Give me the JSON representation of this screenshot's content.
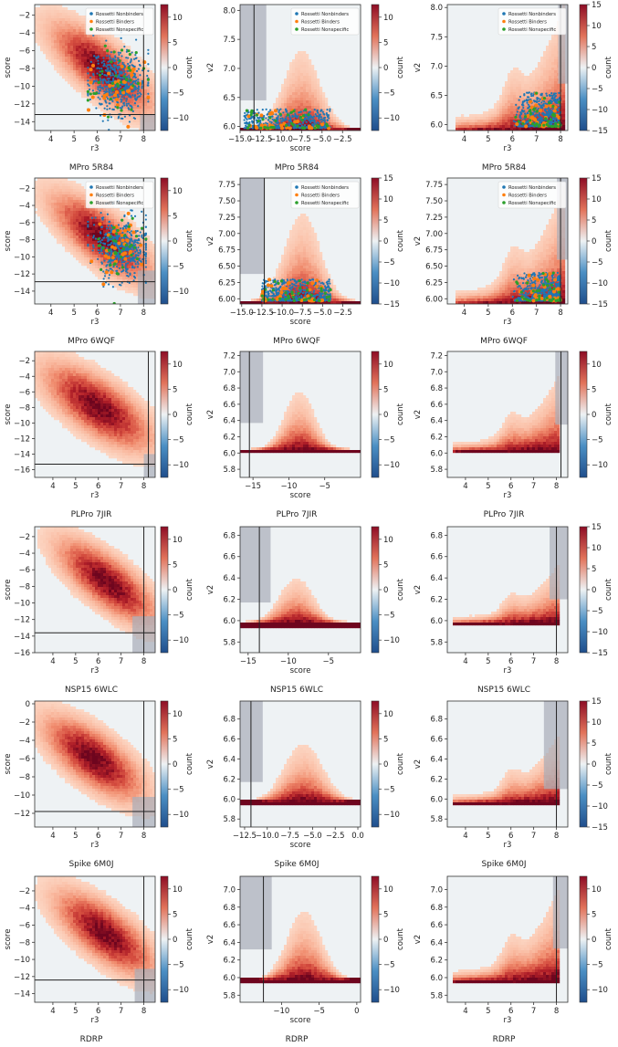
{
  "colorbar": {
    "label": "count"
  },
  "legend": [
    "Rossetti Nonbinders",
    "Rossetti Binders",
    "Rossetti Nonspecific"
  ],
  "colors": {
    "nonbinder": "#1f77b4",
    "binder": "#ff7f0e",
    "nonspecific": "#2ca02c",
    "background": "#eef2f4",
    "shade": "#a8adb8"
  },
  "rows": [
    {
      "title": "MPro 5R84",
      "panels": [
        {
          "type": "heatmap",
          "xlabel": "r3",
          "ylabel": "score",
          "xlim": [
            3.3,
            8.5
          ],
          "ylim": [
            -15,
            -0.8
          ],
          "xticks": [
            4,
            5,
            6,
            7,
            8
          ],
          "yticks": [
            -14,
            -12,
            -10,
            -8,
            -6,
            -4,
            -2
          ],
          "cbar": [
            -10,
            -5,
            0,
            5,
            10
          ],
          "legend": true,
          "vline": 8.0,
          "hline": -13.2,
          "shade": [
            [
              7.85,
              8.5,
              -15,
              -13.2
            ]
          ],
          "dist": {
            "kind": "diag",
            "cx": 6.2,
            "cy": -8,
            "sx": 1.2,
            "sy": 2.8,
            "rho": -0.75
          },
          "scatter": {
            "cx": 6.9,
            "cy": -9.5,
            "sx": 0.6,
            "sy": 1.8,
            "xmin": 5.6,
            "xmax": 8.2
          }
        },
        {
          "type": "heatmap",
          "xlabel": "score",
          "ylabel": "v2",
          "xlim": [
            -15,
            -0.3
          ],
          "ylim": [
            5.93,
            8.1
          ],
          "xticks": [
            -15,
            -12.5,
            -10,
            -7.5,
            -5,
            -2.5
          ],
          "yticks": [
            6.0,
            6.5,
            7.0,
            7.5,
            8.0
          ],
          "cbar": [
            -10,
            -5,
            0,
            5,
            10
          ],
          "legend": true,
          "vline": -13.3,
          "shade": [
            [
              -15,
              -11.8,
              6.45,
              8.1
            ]
          ],
          "dist": {
            "kind": "mound",
            "cx": -7.5,
            "sx": 3.2,
            "base": 5.97,
            "peak": 7.3,
            "pw": 1.6
          },
          "scatter": {
            "kind": "band",
            "xmin": -14.5,
            "xmax": -4,
            "ymin": 5.97,
            "ymax": 6.3
          }
        },
        {
          "type": "heatmap",
          "xlabel": "r3",
          "ylabel": "v2",
          "xlim": [
            3.3,
            8.3
          ],
          "ylim": [
            5.9,
            8.05
          ],
          "xticks": [
            4,
            5,
            6,
            7,
            8
          ],
          "yticks": [
            6.0,
            6.5,
            7.0,
            7.5,
            8.0
          ],
          "cbar": [
            -15,
            -10,
            -5,
            0,
            5,
            10,
            15
          ],
          "legend": true,
          "vline": 8.0,
          "shade": [
            [
              7.9,
              8.3,
              6.7,
              8.05
            ]
          ],
          "dist": {
            "kind": "rise",
            "x0": 3.6,
            "x1": 8.0,
            "base": 5.96,
            "peak": 7.9
          },
          "scatter": {
            "kind": "band",
            "xmin": 6.0,
            "xmax": 8.0,
            "ymin": 5.97,
            "ymax": 6.55
          }
        }
      ]
    },
    {
      "title": "MPro 6WQF",
      "panels": [
        {
          "type": "heatmap",
          "xlabel": "r3",
          "ylabel": "score",
          "xlim": [
            3.3,
            8.5
          ],
          "ylim": [
            -15.5,
            -0.8
          ],
          "xticks": [
            4,
            5,
            6,
            7,
            8
          ],
          "yticks": [
            -14,
            -12,
            -10,
            -8,
            -6,
            -4,
            -2
          ],
          "cbar": [
            -10,
            -5,
            0,
            5,
            10
          ],
          "legend": true,
          "vline": 8.0,
          "hline": -12.9,
          "shade": [
            [
              7.75,
              8.5,
              -15.5,
              -11.6
            ]
          ],
          "dist": {
            "kind": "diag",
            "cx": 6.2,
            "cy": -7.8,
            "sx": 1.2,
            "sy": 2.8,
            "rho": -0.75
          },
          "scatter": {
            "cx": 7.0,
            "cy": -8.8,
            "sx": 0.6,
            "sy": 1.8,
            "xmin": 5.6,
            "xmax": 8.1
          }
        },
        {
          "type": "heatmap",
          "xlabel": "score",
          "ylabel": "v2",
          "xlim": [
            -15.2,
            -0.3
          ],
          "ylim": [
            5.92,
            7.85
          ],
          "xticks": [
            -15,
            -12.5,
            -10,
            -7.5,
            -5,
            -2.5
          ],
          "yticks": [
            6.0,
            6.25,
            6.5,
            6.75,
            7.0,
            7.25,
            7.5,
            7.75
          ],
          "cbar": [
            -15,
            -10,
            -5,
            0,
            5,
            10,
            15
          ],
          "legend": true,
          "vline": -12.2,
          "shade": [
            [
              -15.2,
              -12.2,
              6.38,
              7.85
            ]
          ],
          "dist": {
            "kind": "mound",
            "cx": -7.5,
            "sx": 3.0,
            "base": 5.97,
            "peak": 7.3,
            "pw": 1.6
          },
          "scatter": {
            "kind": "band",
            "xmin": -12.5,
            "xmax": -4,
            "ymin": 5.97,
            "ymax": 6.3
          }
        },
        {
          "type": "heatmap",
          "xlabel": "r3",
          "ylabel": "v2",
          "xlim": [
            3.3,
            8.3
          ],
          "ylim": [
            5.92,
            7.85
          ],
          "xticks": [
            4,
            5,
            6,
            7,
            8
          ],
          "yticks": [
            6.0,
            6.25,
            6.5,
            6.75,
            7.0,
            7.25,
            7.5,
            7.75
          ],
          "cbar": [
            -15,
            -10,
            -5,
            0,
            5,
            10,
            15
          ],
          "legend": true,
          "vline": 8.0,
          "shade": [
            [
              7.85,
              8.3,
              6.6,
              7.85
            ]
          ],
          "dist": {
            "kind": "rise",
            "x0": 3.6,
            "x1": 8.0,
            "base": 5.97,
            "peak": 7.6
          },
          "scatter": {
            "kind": "band",
            "xmin": 6.0,
            "xmax": 8.0,
            "ymin": 5.97,
            "ymax": 6.4
          }
        }
      ]
    },
    {
      "title": "PLPro 7JIR",
      "panels": [
        {
          "type": "heatmap",
          "xlabel": "r3",
          "ylabel": "score",
          "xlim": [
            3.2,
            8.5
          ],
          "ylim": [
            -17,
            -0.8
          ],
          "xticks": [
            4,
            5,
            6,
            7,
            8
          ],
          "yticks": [
            -16,
            -14,
            -12,
            -10,
            -8,
            -6,
            -4,
            -2
          ],
          "cbar": [
            -10,
            -5,
            0,
            5,
            10
          ],
          "vline": 8.2,
          "hline": -15.3,
          "shade": [
            [
              8.0,
              8.5,
              -17,
              -14.0
            ]
          ],
          "dist": {
            "kind": "diag",
            "cx": 6.0,
            "cy": -8,
            "sx": 1.3,
            "sy": 3.0,
            "rho": -0.7
          }
        },
        {
          "type": "heatmap",
          "xlabel": "score",
          "ylabel": "v2",
          "xlim": [
            -16.8,
            0
          ],
          "ylim": [
            5.7,
            7.25
          ],
          "xticks": [
            -15,
            -10,
            -5
          ],
          "yticks": [
            5.8,
            6.0,
            6.2,
            6.4,
            6.6,
            6.8,
            7.0,
            7.2
          ],
          "cbar": [
            -10,
            -5,
            0,
            5,
            10
          ],
          "vline": -15.5,
          "shade": [
            [
              -16.8,
              -13.6,
              6.37,
              7.25
            ]
          ],
          "dist": {
            "kind": "mound",
            "cx": -8.5,
            "sx": 3.5,
            "base": 6.05,
            "peak": 6.75,
            "pw": 1.5
          }
        },
        {
          "type": "heatmap",
          "xlabel": "r3",
          "ylabel": "v2",
          "xlim": [
            3.2,
            8.5
          ],
          "ylim": [
            5.7,
            7.25
          ],
          "xticks": [
            4,
            5,
            6,
            7,
            8
          ],
          "yticks": [
            5.8,
            6.0,
            6.2,
            6.4,
            6.6,
            6.8,
            7.0,
            7.2
          ],
          "cbar": [
            -10,
            -5,
            0,
            5,
            10
          ],
          "vline": 8.2,
          "shade": [
            [
              7.95,
              8.5,
              6.35,
              7.25
            ]
          ],
          "dist": {
            "kind": "rise",
            "x0": 3.5,
            "x1": 8.0,
            "base": 6.05,
            "peak": 6.9
          }
        }
      ]
    },
    {
      "title": "NSP15 6WLC",
      "panels": [
        {
          "type": "heatmap",
          "xlabel": "r3",
          "ylabel": "score",
          "xlim": [
            3.2,
            8.5
          ],
          "ylim": [
            -16,
            -0.8
          ],
          "xticks": [
            4,
            5,
            6,
            7,
            8
          ],
          "yticks": [
            -16,
            -14,
            -12,
            -10,
            -8,
            -6,
            -4,
            -2
          ],
          "cbar": [
            -10,
            -5,
            0,
            5,
            10
          ],
          "vline": 8.0,
          "hline": -13.6,
          "shade": [
            [
              7.5,
              8.5,
              -16,
              -11.6
            ]
          ],
          "dist": {
            "kind": "diag",
            "cx": 6.4,
            "cy": -7.5,
            "sx": 1.2,
            "sy": 2.8,
            "rho": -0.75
          }
        },
        {
          "type": "heatmap",
          "xlabel": "score",
          "ylabel": "v2",
          "xlim": [
            -16,
            -1
          ],
          "ylim": [
            5.7,
            6.88
          ],
          "xticks": [
            -15,
            -10,
            -5
          ],
          "yticks": [
            5.8,
            6.0,
            6.2,
            6.4,
            6.6,
            6.8
          ],
          "cbar": [
            -10,
            -5,
            0,
            5,
            10
          ],
          "vline": -13.6,
          "shade": [
            [
              -16,
              -12.2,
              6.17,
              6.88
            ]
          ],
          "dist": {
            "kind": "mound",
            "cx": -9,
            "sx": 3.0,
            "base": 5.99,
            "peak": 6.4,
            "pw": 1.5
          }
        },
        {
          "type": "heatmap",
          "xlabel": "r3",
          "ylabel": "v2",
          "xlim": [
            3.2,
            8.5
          ],
          "ylim": [
            5.7,
            6.88
          ],
          "xticks": [
            4,
            5,
            6,
            7,
            8
          ],
          "yticks": [
            5.8,
            6.0,
            6.2,
            6.4,
            6.6,
            6.8
          ],
          "cbar": [
            -15,
            -10,
            -5,
            0,
            5,
            10,
            15
          ],
          "vline": 8.0,
          "shade": [
            [
              7.7,
              8.5,
              6.2,
              6.88
            ]
          ],
          "dist": {
            "kind": "rise",
            "x0": 3.5,
            "x1": 8.0,
            "base": 5.99,
            "peak": 6.5
          }
        }
      ]
    },
    {
      "title": "Spike 6M0J",
      "panels": [
        {
          "type": "heatmap",
          "xlabel": "r3",
          "ylabel": "score",
          "xlim": [
            3.2,
            8.5
          ],
          "ylim": [
            -13.5,
            0.3
          ],
          "xticks": [
            4,
            5,
            6,
            7,
            8
          ],
          "yticks": [
            -12,
            -10,
            -8,
            -6,
            -4,
            -2,
            0
          ],
          "cbar": [
            -10,
            -5,
            0,
            5,
            10
          ],
          "vline": 8.0,
          "hline": -11.8,
          "shade": [
            [
              7.5,
              8.5,
              -13.5,
              -10.2
            ]
          ],
          "dist": {
            "kind": "diag",
            "cx": 5.8,
            "cy": -6,
            "sx": 1.2,
            "sy": 2.5,
            "rho": -0.7
          }
        },
        {
          "type": "heatmap",
          "xlabel": "score",
          "ylabel": "v2",
          "xlim": [
            -13,
            0.3
          ],
          "ylim": [
            5.72,
            6.98
          ],
          "xticks": [
            -12.5,
            -10,
            -7.5,
            -5,
            -2.5,
            0
          ],
          "yticks": [
            5.8,
            6.0,
            6.2,
            6.4,
            6.6,
            6.8
          ],
          "cbar": [
            -10,
            -5,
            0,
            5,
            10
          ],
          "vline": -11.8,
          "shade": [
            [
              -13,
              -10.5,
              6.17,
              6.98
            ]
          ],
          "dist": {
            "kind": "mound",
            "cx": -6,
            "sx": 3.0,
            "base": 5.99,
            "peak": 6.55,
            "pw": 1.5
          }
        },
        {
          "type": "heatmap",
          "xlabel": "r3",
          "ylabel": "v2",
          "xlim": [
            3.2,
            8.5
          ],
          "ylim": [
            5.72,
            6.98
          ],
          "xticks": [
            4,
            5,
            6,
            7,
            8
          ],
          "yticks": [
            5.8,
            6.0,
            6.2,
            6.4,
            6.6,
            6.8
          ],
          "cbar": [
            -15,
            -10,
            -5,
            0,
            5,
            10,
            15
          ],
          "vline": 8.0,
          "shade": [
            [
              7.45,
              8.5,
              6.1,
              6.98
            ]
          ],
          "dist": {
            "kind": "rise",
            "x0": 3.5,
            "x1": 8.0,
            "base": 5.98,
            "peak": 6.6
          }
        }
      ]
    },
    {
      "title": "RDRP",
      "panels": [
        {
          "type": "heatmap",
          "xlabel": "r3",
          "ylabel": "score",
          "xlim": [
            3.2,
            8.5
          ],
          "ylim": [
            -15,
            -0.3
          ],
          "xticks": [
            4,
            5,
            6,
            7,
            8
          ],
          "yticks": [
            -14,
            -12,
            -10,
            -8,
            -6,
            -4,
            -2
          ],
          "cbar": [
            -10,
            -5,
            0,
            5,
            10
          ],
          "vline": 8.0,
          "hline": -12.4,
          "shade": [
            [
              7.6,
              8.5,
              -15,
              -11.1
            ]
          ],
          "dist": {
            "kind": "diag",
            "cx": 6.3,
            "cy": -7,
            "sx": 1.2,
            "sy": 2.7,
            "rho": -0.72
          }
        },
        {
          "type": "heatmap",
          "xlabel": "score",
          "ylabel": "v2",
          "xlim": [
            -15.5,
            0.5
          ],
          "ylim": [
            5.72,
            7.15
          ],
          "xticks": [
            -10,
            -5,
            0
          ],
          "yticks": [
            5.8,
            6.0,
            6.2,
            6.4,
            6.6,
            6.8,
            7.0
          ],
          "cbar": [
            -10,
            -5,
            0,
            5,
            10
          ],
          "vline": -12.4,
          "shade": [
            [
              -15.5,
              -11.3,
              6.32,
              7.15
            ]
          ],
          "dist": {
            "kind": "mound",
            "cx": -7,
            "sx": 3.5,
            "base": 5.99,
            "peak": 6.75,
            "pw": 1.6
          }
        },
        {
          "type": "heatmap",
          "xlabel": "r3",
          "ylabel": "v2",
          "xlim": [
            3.2,
            8.5
          ],
          "ylim": [
            5.72,
            7.15
          ],
          "xticks": [
            4,
            5,
            6,
            7,
            8
          ],
          "yticks": [
            5.8,
            6.0,
            6.2,
            6.4,
            6.6,
            6.8,
            7.0
          ],
          "cbar": [
            -10,
            -5,
            0,
            5,
            10
          ],
          "vline": 8.0,
          "shade": [
            [
              7.85,
              8.5,
              6.33,
              7.15
            ]
          ],
          "dist": {
            "kind": "rise",
            "x0": 3.5,
            "x1": 8.0,
            "base": 5.99,
            "peak": 6.95
          }
        }
      ]
    }
  ],
  "chart_data": {
    "type": "heatmap",
    "description_axes": "3 columns per row: score vs r3, v2 vs score, v2 vs r3",
    "colorbar_label": "count",
    "row_titles": [
      "MPro 5R84",
      "MPro 6WQF",
      "PLPro 7JIR",
      "NSP15 6WLC",
      "Spike 6M0J",
      "RDRP"
    ]
  }
}
